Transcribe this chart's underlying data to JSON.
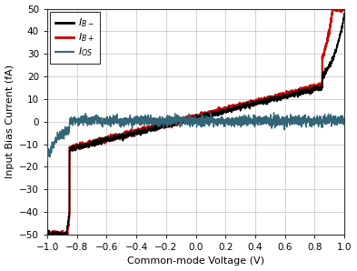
{
  "xlabel": "Common-mode Voltage (V)",
  "ylabel": "Input Bias Current (fA)",
  "xlim": [
    -1,
    1
  ],
  "ylim": [
    -50,
    50
  ],
  "xticks": [
    -1.0,
    -0.8,
    -0.6,
    -0.4,
    -0.2,
    0.0,
    0.2,
    0.4,
    0.6,
    0.8,
    1.0
  ],
  "yticks": [
    -50,
    -40,
    -30,
    -20,
    -10,
    0,
    10,
    20,
    30,
    40,
    50
  ],
  "color_ibminus": "#000000",
  "color_ibplus": "#cc0000",
  "color_ios": "#336677",
  "grid_color": "#c0c0c0",
  "bg_color": "#ffffff",
  "fig_bg": "#ffffff",
  "lw_ibminus": 1.2,
  "lw_ibplus": 1.5,
  "lw_ios": 1.0
}
